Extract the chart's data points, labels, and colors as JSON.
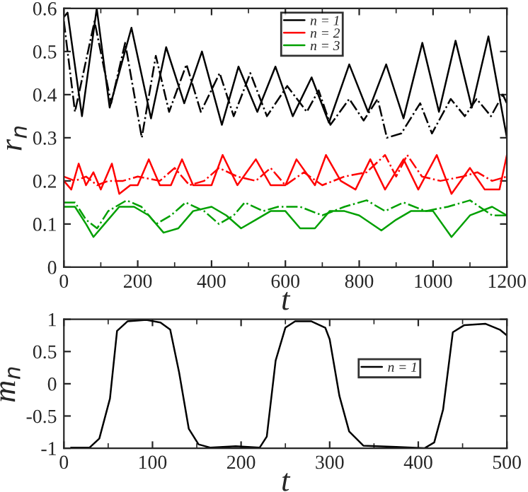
{
  "chart_data": [
    {
      "type": "line",
      "xlabel": "t",
      "ylabel": "r$_{n}$",
      "xlim": [
        0,
        1200
      ],
      "ylim": [
        0,
        0.6
      ],
      "xticks": [
        0,
        {
          "value": 100,
          "label": null
        },
        200,
        {
          "value": 300,
          "label": null
        },
        400,
        {
          "value": 500,
          "label": null
        },
        600,
        {
          "value": 700,
          "label": null
        },
        800,
        {
          "value": 900,
          "label": null
        },
        1000,
        {
          "value": 1100,
          "label": null
        },
        1200
      ],
      "yticks": [
        0,
        0.1,
        0.2,
        0.3,
        0.4,
        0.5,
        0.6
      ],
      "grid": false,
      "legend": "top",
      "marker": "none",
      "series": [
        {
          "name": "n = 1",
          "color": "#000000",
          "line_style": "solid",
          "x": [
            0,
            10,
            49,
            89,
            124,
            183,
            236,
            277,
            326,
            374,
            428,
            473,
            524,
            573,
            620,
            671,
            718,
            773,
            824,
            873,
            920,
            971,
            1016,
            1061,
            1105,
            1150,
            1200
          ],
          "values": [
            0.58,
            0.59,
            0.35,
            0.6,
            0.37,
            0.555,
            0.345,
            0.51,
            0.38,
            0.5,
            0.33,
            0.465,
            0.36,
            0.465,
            0.35,
            0.44,
            0.335,
            0.47,
            0.36,
            0.47,
            0.345,
            0.52,
            0.36,
            0.525,
            0.37,
            0.535,
            0.3
          ]
        },
        {
          "name": "n = 2",
          "color": "#ff0000",
          "line_style": "solid",
          "x": [
            0,
            20,
            40,
            60,
            80,
            100,
            130,
            150,
            180,
            200,
            230,
            260,
            290,
            320,
            350,
            400,
            430,
            470,
            520,
            560,
            600,
            630,
            680,
            710,
            750,
            790,
            830,
            870,
            920,
            960,
            1010,
            1050,
            1100,
            1140,
            1180,
            1200
          ],
          "values": [
            0.2,
            0.18,
            0.24,
            0.19,
            0.22,
            0.18,
            0.24,
            0.17,
            0.19,
            0.19,
            0.25,
            0.19,
            0.19,
            0.25,
            0.19,
            0.19,
            0.26,
            0.19,
            0.25,
            0.19,
            0.19,
            0.25,
            0.19,
            0.26,
            0.2,
            0.18,
            0.25,
            0.18,
            0.25,
            0.18,
            0.26,
            0.17,
            0.23,
            0.18,
            0.18,
            0.26
          ]
        },
        {
          "name": "n = 3",
          "color": "#00a000",
          "line_style": "solid",
          "x": [
            0,
            30,
            60,
            80,
            110,
            150,
            190,
            230,
            270,
            310,
            350,
            400,
            440,
            480,
            520,
            560,
            600,
            640,
            680,
            720,
            760,
            800,
            860,
            900,
            940,
            1000,
            1050,
            1100,
            1160,
            1200
          ],
          "values": [
            0.14,
            0.14,
            0.1,
            0.07,
            0.1,
            0.14,
            0.14,
            0.12,
            0.08,
            0.09,
            0.13,
            0.14,
            0.12,
            0.09,
            0.11,
            0.13,
            0.13,
            0.09,
            0.09,
            0.13,
            0.13,
            0.12,
            0.085,
            0.11,
            0.13,
            0.13,
            0.07,
            0.12,
            0.14,
            0.12
          ]
        },
        {
          "color": "#000000",
          "line_style": "dashdot",
          "x": [
            0,
            30,
            83,
            128,
            166,
            211,
            249,
            285,
            332,
            371,
            422,
            460,
            505,
            550,
            605,
            658,
            690,
            722,
            773,
            812,
            850,
            875,
            914,
            965,
            997,
            1048,
            1086,
            1118,
            1157,
            1189,
            1200
          ],
          "values": [
            0.57,
            0.36,
            0.57,
            0.38,
            0.52,
            0.3,
            0.49,
            0.36,
            0.47,
            0.36,
            0.45,
            0.35,
            0.45,
            0.35,
            0.42,
            0.36,
            0.41,
            0.33,
            0.39,
            0.34,
            0.39,
            0.3,
            0.31,
            0.38,
            0.31,
            0.39,
            0.35,
            0.39,
            0.35,
            0.4,
            0.38
          ]
        },
        {
          "color": "#ff0000",
          "line_style": "dashdot",
          "x": [
            0,
            30,
            60,
            90,
            120,
            160,
            200,
            260,
            300,
            340,
            380,
            420,
            470,
            520,
            560,
            600,
            650,
            700,
            760,
            820,
            870,
            900,
            930,
            970,
            1020,
            1080,
            1120,
            1160,
            1200
          ],
          "values": [
            0.21,
            0.2,
            0.21,
            0.19,
            0.2,
            0.2,
            0.21,
            0.2,
            0.23,
            0.19,
            0.2,
            0.23,
            0.21,
            0.2,
            0.23,
            0.19,
            0.22,
            0.19,
            0.21,
            0.22,
            0.26,
            0.21,
            0.26,
            0.21,
            0.2,
            0.21,
            0.22,
            0.2,
            0.21
          ]
        },
        {
          "color": "#00a000",
          "line_style": "dashdot",
          "x": [
            0,
            30,
            60,
            90,
            120,
            170,
            210,
            250,
            290,
            330,
            380,
            420,
            460,
            490,
            540,
            580,
            640,
            700,
            760,
            820,
            870,
            920,
            980,
            1040,
            1100,
            1160,
            1200
          ],
          "values": [
            0.15,
            0.15,
            0.11,
            0.09,
            0.13,
            0.155,
            0.14,
            0.1,
            0.12,
            0.15,
            0.13,
            0.1,
            0.12,
            0.15,
            0.13,
            0.14,
            0.14,
            0.12,
            0.14,
            0.155,
            0.13,
            0.15,
            0.13,
            0.14,
            0.155,
            0.12,
            0.12
          ]
        }
      ]
    },
    {
      "type": "line",
      "xlabel": "t",
      "ylabel": "m$_{n}$",
      "xlim": [
        0,
        500
      ],
      "ylim": [
        -1,
        1
      ],
      "xticks": [
        0,
        {
          "value": 50,
          "label": null
        },
        100,
        {
          "value": 150,
          "label": null
        },
        200,
        {
          "value": 250,
          "label": null
        },
        300,
        {
          "value": 350,
          "label": null
        },
        400,
        {
          "value": 450,
          "label": null
        },
        500
      ],
      "yticks": [
        {
          "value": -1,
          "label": "-1"
        },
        {
          "value": -0.5,
          "label": "-0.5"
        },
        0,
        0.5,
        1
      ],
      "grid": false,
      "legend": "right",
      "marker": "none",
      "series": [
        {
          "name": "n = 1",
          "color": "#000000",
          "line_style": "solid",
          "x": [
            8,
            29,
            40,
            52,
            60,
            72,
            93,
            109,
            120,
            130,
            141,
            152,
            165,
            194,
            221,
            229,
            239,
            250,
            261,
            279,
            295,
            300,
            311,
            322,
            338,
            375,
            407,
            418,
            428,
            439,
            452,
            476,
            492,
            500
          ],
          "values": [
            -0.99,
            -0.99,
            -0.85,
            -0.23,
            0.82,
            0.97,
            0.99,
            0.95,
            0.84,
            0.18,
            -0.7,
            -0.94,
            -0.99,
            -0.97,
            -0.99,
            -0.82,
            0.36,
            0.87,
            0.97,
            0.97,
            0.87,
            0.69,
            -0.19,
            -0.74,
            -0.96,
            -0.98,
            -1.0,
            -0.91,
            -0.4,
            0.8,
            0.91,
            0.93,
            0.84,
            0.75
          ]
        }
      ]
    }
  ]
}
